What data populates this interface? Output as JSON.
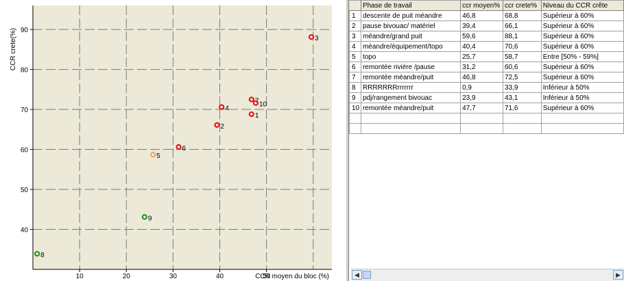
{
  "chart_data": {
    "type": "scatter",
    "xlabel": "CCR moyen du bloc (%)",
    "ylabel": "CCR crete(%)",
    "xlim": [
      0,
      64
    ],
    "ylim": [
      30,
      96
    ],
    "xticks": [
      10,
      20,
      30,
      40,
      50
    ],
    "yticks": [
      40,
      50,
      60,
      70,
      80,
      90
    ],
    "grid": true,
    "points": [
      {
        "label": "1",
        "x": 46.8,
        "y": 68.8,
        "color": "#e8141b"
      },
      {
        "label": "2",
        "x": 39.4,
        "y": 66.1,
        "color": "#e8141b"
      },
      {
        "label": "3",
        "x": 59.6,
        "y": 88.1,
        "color": "#e8141b"
      },
      {
        "label": "4",
        "x": 40.4,
        "y": 70.6,
        "color": "#e8141b"
      },
      {
        "label": "5",
        "x": 25.7,
        "y": 58.7,
        "color": "#f2a070"
      },
      {
        "label": "6",
        "x": 31.2,
        "y": 60.6,
        "color": "#e8141b"
      },
      {
        "label": "7",
        "x": 46.8,
        "y": 72.5,
        "color": "#e8141b"
      },
      {
        "label": "8",
        "x": 0.9,
        "y": 33.9,
        "color": "#1a9a1a"
      },
      {
        "label": "9",
        "x": 23.9,
        "y": 43.1,
        "color": "#1a9a1a"
      },
      {
        "label": "10",
        "x": 47.7,
        "y": 71.6,
        "color": "#e8141b"
      }
    ],
    "colors": {
      "background": "#ece9d8",
      "grid": "#7a7a7a",
      "axis": "#000000"
    }
  },
  "table": {
    "headers": [
      "",
      "Phase de travail",
      "ccr moyen%",
      "ccr crete%",
      "Niveau du CCR crête"
    ],
    "rows": [
      [
        "1",
        "descente de puit méandre",
        "46,8",
        "68,8",
        "Supérieur à 60%"
      ],
      [
        "2",
        "pause bivouac/ matériel",
        "39,4",
        "66,1",
        "Supérieur à 60%"
      ],
      [
        "3",
        "méandre/grand puit",
        "59,6",
        "88,1",
        "Supérieur à 60%"
      ],
      [
        "4",
        "méandre/équipement/topo",
        "40,4",
        "70,6",
        "Supérieur à 60%"
      ],
      [
        "5",
        "topo",
        "25,7",
        "58,7",
        "Entre [50% - 59%]"
      ],
      [
        "6",
        "remontée rivière /pause",
        "31,2",
        "60,6",
        "Supérieur à 60%"
      ],
      [
        "7",
        "remontée méandre/puit",
        "46,8",
        "72,5",
        "Supérieur à 60%"
      ],
      [
        "8",
        "RRRRRRRrrrrrrr",
        "0,9",
        "33,9",
        "Inférieur à 50%"
      ],
      [
        "9",
        "pdj/rangement bivouac",
        "23,9",
        "43,1",
        "Inférieur à 50%"
      ],
      [
        "10",
        "remontée méandre/puit",
        "47,7",
        "71,6",
        "Supérieur à 60%"
      ],
      [
        "",
        "",
        "",
        "",
        ""
      ],
      [
        "",
        "",
        "",
        "",
        ""
      ]
    ]
  },
  "scrollbar": {
    "left_arrow": "◀",
    "right_arrow": "▶"
  }
}
